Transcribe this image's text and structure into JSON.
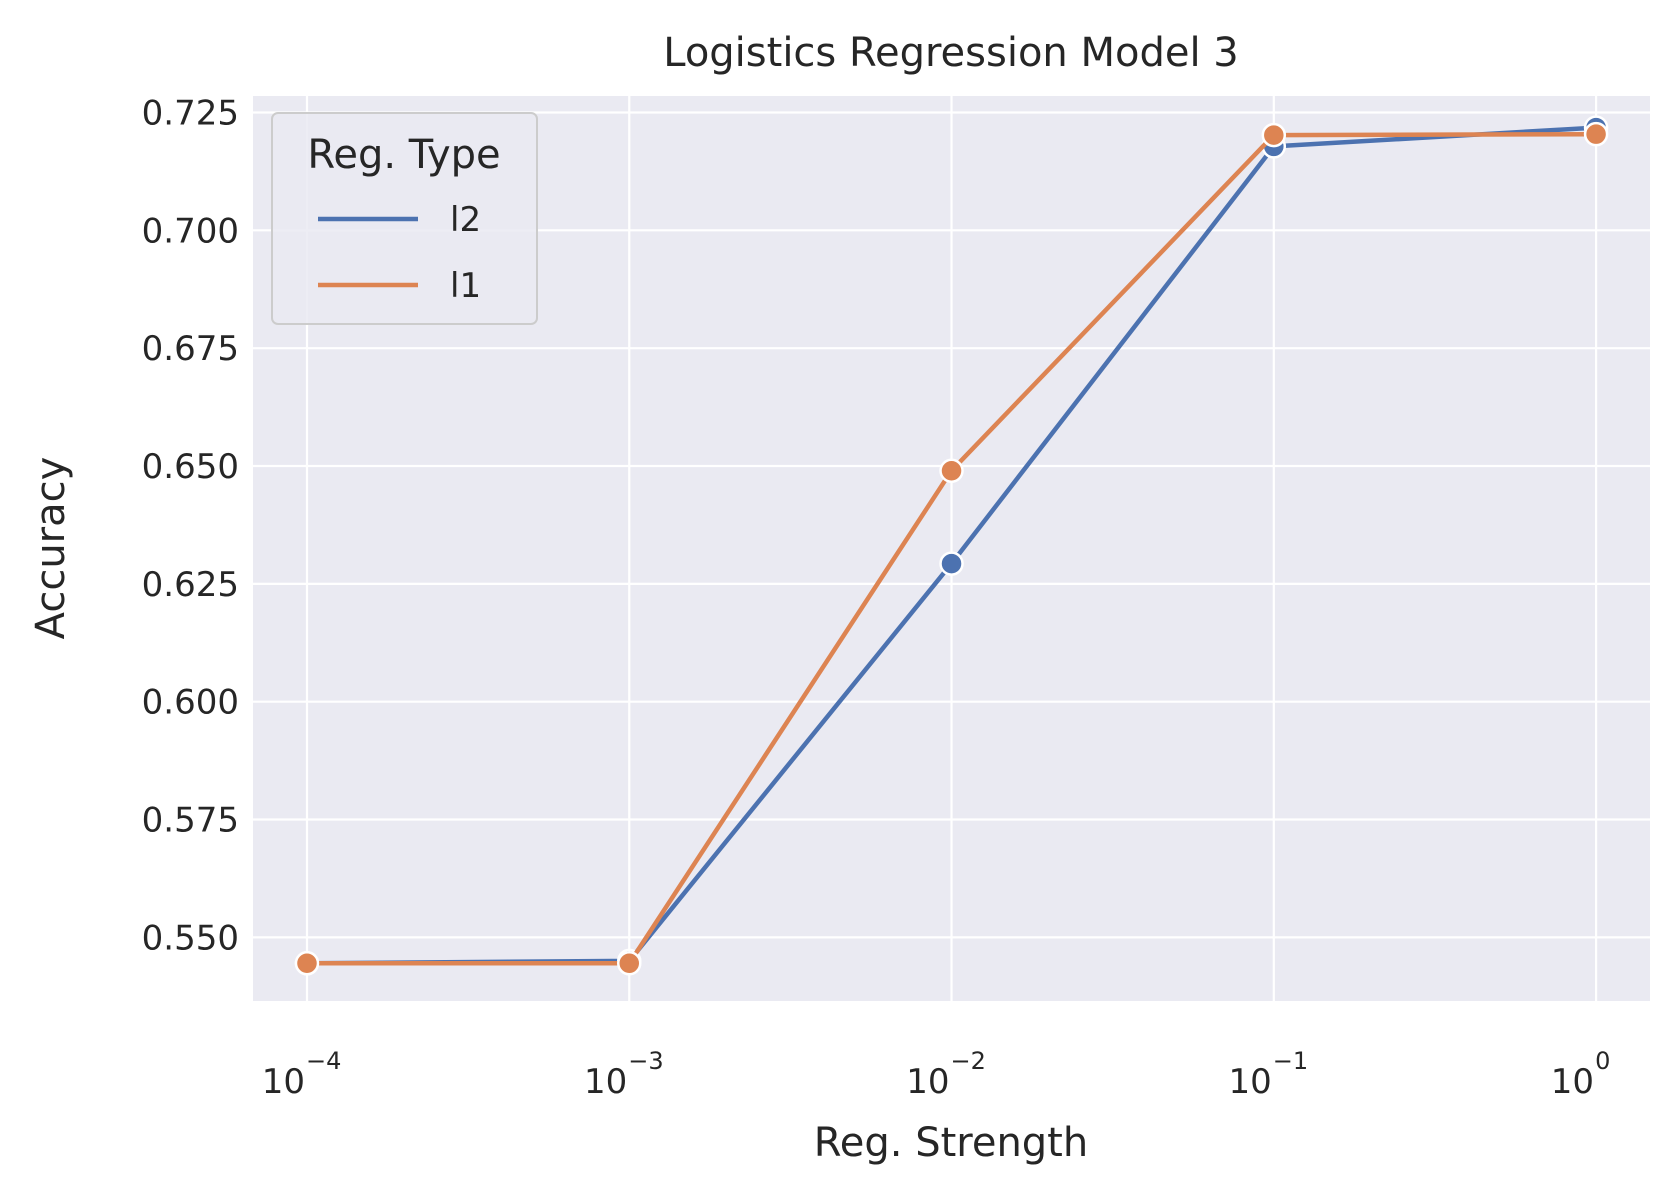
{
  "chart_data": {
    "type": "line",
    "title": "Logistics Regression Model 3",
    "xlabel": "Reg. Strength",
    "ylabel": "Accuracy",
    "x_scale": "log",
    "x": [
      0.0001,
      0.001,
      0.01,
      0.1,
      1
    ],
    "xlim": [
      6.8e-05,
      1.47
    ],
    "ylim": [
      0.5365,
      0.7285
    ],
    "x_ticks": [
      {
        "base": "10",
        "exp": "−4"
      },
      {
        "base": "10",
        "exp": "−3"
      },
      {
        "base": "10",
        "exp": "−2"
      },
      {
        "base": "10",
        "exp": "−1"
      },
      {
        "base": "10",
        "exp": "0"
      }
    ],
    "y_ticks": [
      0.55,
      0.575,
      0.6,
      0.625,
      0.65,
      0.675,
      0.7,
      0.725
    ],
    "y_tick_labels": [
      "0.550",
      "0.575",
      "0.600",
      "0.625",
      "0.650",
      "0.675",
      "0.700",
      "0.725"
    ],
    "grid": true,
    "legend_position": "top-left",
    "legend_title": "Reg. Type",
    "series": [
      {
        "name": "l2",
        "color": "#4c72b0",
        "values": [
          0.5445,
          0.545,
          0.6293,
          0.7178,
          0.7218
        ]
      },
      {
        "name": "l1",
        "color": "#dd8452",
        "values": [
          0.5445,
          0.5445,
          0.649,
          0.7202,
          0.7204
        ]
      }
    ],
    "background_color": "#eaeaf2"
  }
}
